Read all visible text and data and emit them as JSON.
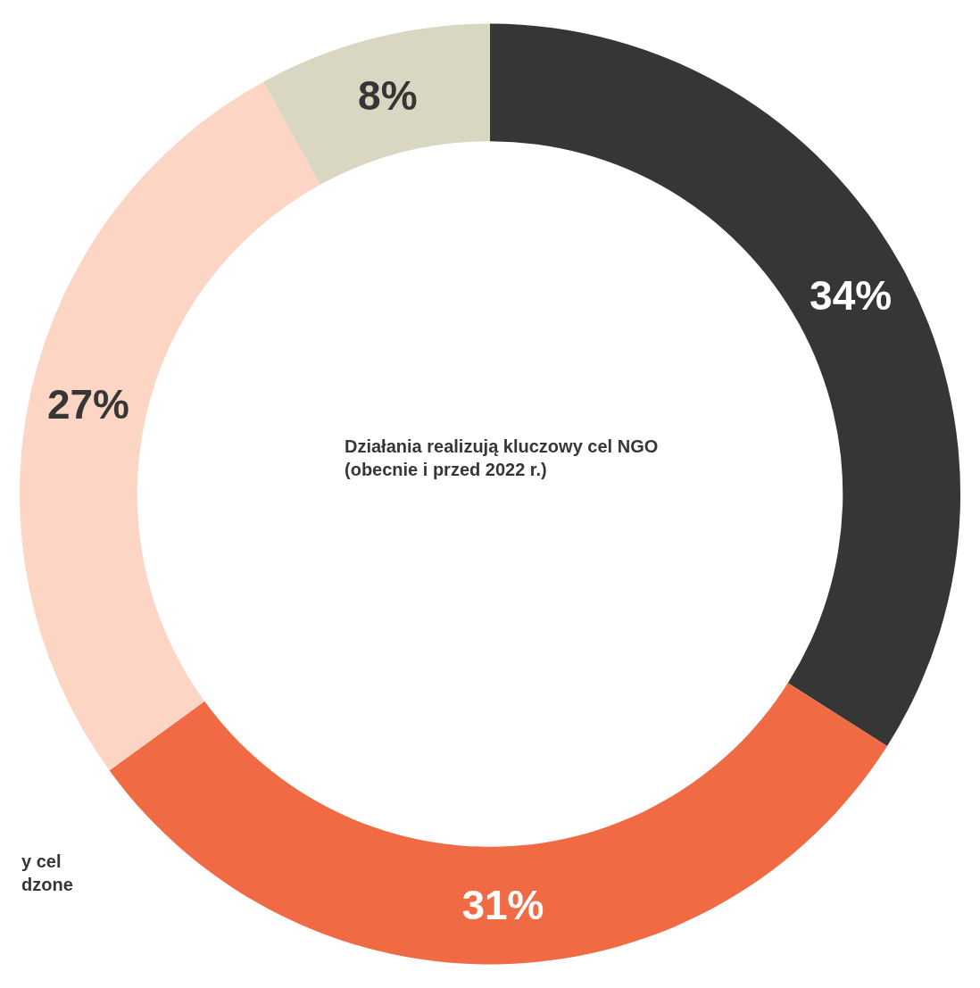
{
  "chart_data": {
    "type": "donut",
    "categories": [
      "Działania realizują kluczowy cel NGO\n(obecnie i przed 2022 r.)",
      "y cel\ndzone",
      null,
      null
    ],
    "values": [
      34,
      31,
      27,
      8
    ],
    "value_labels": [
      "34%",
      "31%",
      "27%",
      "8%"
    ],
    "colors": [
      "#363636",
      "#f06a44",
      "#fdd5c4",
      "#d9d6c2"
    ],
    "legend": false
  }
}
